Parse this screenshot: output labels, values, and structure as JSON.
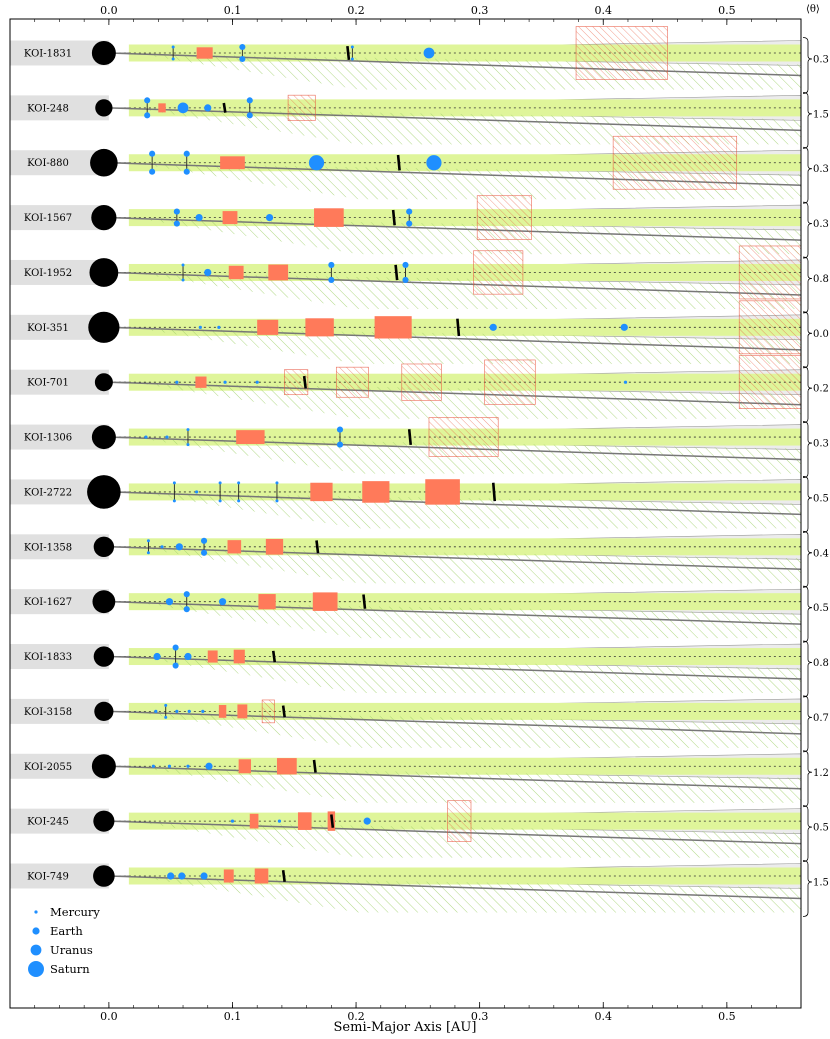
{
  "chart_data": {
    "type": "scatter",
    "title": "",
    "xlabel": "Semi-Major Axis [AU]",
    "xlim": [
      -0.08,
      0.56
    ],
    "xticks": [
      {
        "value": 0.0,
        "label": "0.0"
      },
      {
        "value": 0.1,
        "label": "0.1"
      },
      {
        "value": 0.2,
        "label": "0.2"
      },
      {
        "value": 0.3,
        "label": "0.3"
      },
      {
        "value": 0.4,
        "label": "0.4"
      },
      {
        "value": 0.5,
        "label": "0.5"
      }
    ],
    "theta_header": "⟨θ⟩",
    "legend": {
      "placement": "bottom-left",
      "items": [
        {
          "label": "Mercury",
          "size": "mercury"
        },
        {
          "label": "Earth",
          "size": "earth"
        },
        {
          "label": "Uranus",
          "size": "uranus"
        },
        {
          "label": "Saturn",
          "size": "saturn"
        }
      ]
    },
    "colors": {
      "planet": "#1f8fff",
      "star": "#000000",
      "hz_band": "#dff59a",
      "hz_hatch": "#8fc95a",
      "gap": "#ff7a5a",
      "gap_hatch": "#e8503a",
      "cone": "#e0e0e0"
    },
    "systems": [
      {
        "name": "KOI-1831",
        "theta": "0.3",
        "star_size": 1.0,
        "hz_end": 0.56,
        "planets": [
          {
            "a": 0.052,
            "size": "mercury",
            "err": 1
          },
          {
            "a": 0.108,
            "size": "earth",
            "err": 1
          },
          {
            "a": 0.197,
            "size": "mercury",
            "err": 1
          },
          {
            "a": 0.259,
            "size": "uranus",
            "err": 0
          }
        ],
        "gaps": [
          {
            "a1": 0.071,
            "a2": 0.084
          }
        ],
        "hatched_gaps": [
          {
            "a1": 0.378,
            "a2": 0.452
          }
        ],
        "bar": 0.193
      },
      {
        "name": "KOI-248",
        "theta": "1.5",
        "star_size": 0.72,
        "hz_end": 0.56,
        "planets": [
          {
            "a": 0.031,
            "size": "earth",
            "err": 1
          },
          {
            "a": 0.06,
            "size": "uranus",
            "err": 0
          },
          {
            "a": 0.08,
            "size": "earth",
            "err": 0
          },
          {
            "a": 0.114,
            "size": "earth",
            "err": 1
          }
        ],
        "gaps": [
          {
            "a1": 0.04,
            "a2": 0.046
          }
        ],
        "hatched_gaps": [
          {
            "a1": 0.145,
            "a2": 0.167
          }
        ],
        "bar": 0.093
      },
      {
        "name": "KOI-880",
        "theta": "0.3",
        "star_size": 1.15,
        "hz_end": 0.56,
        "planets": [
          {
            "a": 0.035,
            "size": "earth",
            "err": 1
          },
          {
            "a": 0.063,
            "size": "earth",
            "err": 1
          },
          {
            "a": 0.168,
            "size": "saturn",
            "err": 0
          },
          {
            "a": 0.263,
            "size": "saturn",
            "err": 0
          }
        ],
        "gaps": [
          {
            "a1": 0.09,
            "a2": 0.11
          }
        ],
        "hatched_gaps": [
          {
            "a1": 0.408,
            "a2": 0.508
          }
        ],
        "bar": 0.234
      },
      {
        "name": "KOI-1567",
        "theta": "0.3",
        "star_size": 1.05,
        "hz_end": 0.56,
        "planets": [
          {
            "a": 0.055,
            "size": "earth",
            "err": 1
          },
          {
            "a": 0.073,
            "size": "earth",
            "err": 0
          },
          {
            "a": 0.13,
            "size": "earth",
            "err": 0
          },
          {
            "a": 0.243,
            "size": "earth",
            "err": 1
          }
        ],
        "gaps": [
          {
            "a1": 0.092,
            "a2": 0.104
          },
          {
            "a1": 0.166,
            "a2": 0.19
          }
        ],
        "hatched_gaps": [
          {
            "a1": 0.298,
            "a2": 0.342
          }
        ],
        "bar": 0.23
      },
      {
        "name": "KOI-1952",
        "theta": "0.8",
        "star_size": 1.2,
        "hz_end": 0.56,
        "planets": [
          {
            "a": 0.06,
            "size": "mercury",
            "err": 1
          },
          {
            "a": 0.08,
            "size": "earth",
            "err": 0
          },
          {
            "a": 0.18,
            "size": "earth",
            "err": 1
          },
          {
            "a": 0.24,
            "size": "earth",
            "err": 1
          }
        ],
        "gaps": [
          {
            "a1": 0.097,
            "a2": 0.109
          },
          {
            "a1": 0.129,
            "a2": 0.145
          }
        ],
        "hatched_gaps": [
          {
            "a1": 0.295,
            "a2": 0.335
          },
          {
            "a1": 0.51,
            "a2": 0.56
          }
        ],
        "bar": 0.232
      },
      {
        "name": "KOI-351",
        "theta": "0.0",
        "star_size": 1.3,
        "hz_end": 0.56,
        "planets": [
          {
            "a": 0.074,
            "size": "mercury",
            "err": 0
          },
          {
            "a": 0.089,
            "size": "mercury",
            "err": 0
          },
          {
            "a": 0.311,
            "size": "earth",
            "err": 0
          },
          {
            "a": 0.417,
            "size": "earth",
            "err": 0
          }
        ],
        "gaps": [
          {
            "a1": 0.12,
            "a2": 0.137
          },
          {
            "a1": 0.159,
            "a2": 0.182
          },
          {
            "a1": 0.215,
            "a2": 0.245
          }
        ],
        "hatched_gaps": [
          {
            "a1": 0.51,
            "a2": 0.56
          }
        ],
        "bar": 0.282
      },
      {
        "name": "KOI-701",
        "theta": "0.2",
        "star_size": 0.75,
        "hz_end": 0.56,
        "planets": [
          {
            "a": 0.055,
            "size": "mercury",
            "err": 0
          },
          {
            "a": 0.094,
            "size": "mercury",
            "err": 0
          },
          {
            "a": 0.12,
            "size": "mercury",
            "err": 0
          },
          {
            "a": 0.418,
            "size": "mercury",
            "err": 0
          }
        ],
        "gaps": [
          {
            "a1": 0.07,
            "a2": 0.079
          }
        ],
        "hatched_gaps": [
          {
            "a1": 0.142,
            "a2": 0.161
          },
          {
            "a1": 0.184,
            "a2": 0.21
          },
          {
            "a1": 0.237,
            "a2": 0.269
          },
          {
            "a1": 0.304,
            "a2": 0.345
          },
          {
            "a1": 0.51,
            "a2": 0.56
          }
        ],
        "bar": 0.158
      },
      {
        "name": "KOI-1306",
        "theta": "0.3",
        "star_size": 1.0,
        "hz_end": 0.56,
        "planets": [
          {
            "a": 0.03,
            "size": "mercury",
            "err": 0
          },
          {
            "a": 0.047,
            "size": "mercury",
            "err": 0
          },
          {
            "a": 0.064,
            "size": "mercury",
            "err": 1
          },
          {
            "a": 0.187,
            "size": "earth",
            "err": 1
          }
        ],
        "gaps": [
          {
            "a1": 0.103,
            "a2": 0.126
          }
        ],
        "hatched_gaps": [
          {
            "a1": 0.259,
            "a2": 0.315
          }
        ],
        "bar": 0.243
      },
      {
        "name": "KOI-2722",
        "theta": "0.5",
        "star_size": 1.4,
        "hz_end": 0.56,
        "planets": [
          {
            "a": 0.053,
            "size": "mercury",
            "err": 1
          },
          {
            "a": 0.071,
            "size": "mercury",
            "err": 0
          },
          {
            "a": 0.09,
            "size": "mercury",
            "err": 1
          },
          {
            "a": 0.105,
            "size": "mercury",
            "err": 1
          },
          {
            "a": 0.136,
            "size": "mercury",
            "err": 1
          }
        ],
        "gaps": [
          {
            "a1": 0.163,
            "a2": 0.181
          },
          {
            "a1": 0.205,
            "a2": 0.227
          },
          {
            "a1": 0.256,
            "a2": 0.284
          }
        ],
        "hatched_gaps": [],
        "bar": 0.311
      },
      {
        "name": "KOI-1358",
        "theta": "0.4",
        "star_size": 0.85,
        "hz_end": 0.56,
        "planets": [
          {
            "a": 0.032,
            "size": "mercury",
            "err": 1
          },
          {
            "a": 0.043,
            "size": "mercury",
            "err": 0
          },
          {
            "a": 0.057,
            "size": "earth",
            "err": 0
          },
          {
            "a": 0.077,
            "size": "earth",
            "err": 1
          }
        ],
        "gaps": [
          {
            "a1": 0.096,
            "a2": 0.107
          },
          {
            "a1": 0.127,
            "a2": 0.141
          }
        ],
        "hatched_gaps": [],
        "bar": 0.168
      },
      {
        "name": "KOI-1627",
        "theta": "0.5",
        "star_size": 0.95,
        "hz_end": 0.56,
        "planets": [
          {
            "a": 0.049,
            "size": "earth",
            "err": 0
          },
          {
            "a": 0.063,
            "size": "earth",
            "err": 1
          },
          {
            "a": 0.092,
            "size": "earth",
            "err": 0
          }
        ],
        "gaps": [
          {
            "a1": 0.121,
            "a2": 0.135
          },
          {
            "a1": 0.165,
            "a2": 0.185
          }
        ],
        "hatched_gaps": [],
        "bar": 0.206
      },
      {
        "name": "KOI-1833",
        "theta": "0.8",
        "star_size": 0.85,
        "hz_end": 0.56,
        "planets": [
          {
            "a": 0.039,
            "size": "earth",
            "err": 0
          },
          {
            "a": 0.054,
            "size": "earth",
            "err": 1
          },
          {
            "a": 0.064,
            "size": "earth",
            "err": 0
          }
        ],
        "gaps": [
          {
            "a1": 0.08,
            "a2": 0.088
          },
          {
            "a1": 0.101,
            "a2": 0.11
          }
        ],
        "hatched_gaps": [],
        "bar": 0.133
      },
      {
        "name": "KOI-3158",
        "theta": "0.7",
        "star_size": 0.8,
        "hz_end": 0.56,
        "planets": [
          {
            "a": 0.038,
            "size": "mercury",
            "err": 0
          },
          {
            "a": 0.046,
            "size": "mercury",
            "err": 1
          },
          {
            "a": 0.055,
            "size": "mercury",
            "err": 0
          },
          {
            "a": 0.065,
            "size": "mercury",
            "err": 0
          },
          {
            "a": 0.076,
            "size": "mercury",
            "err": 0
          }
        ],
        "gaps": [
          {
            "a1": 0.089,
            "a2": 0.095
          },
          {
            "a1": 0.104,
            "a2": 0.112
          }
        ],
        "hatched_gaps": [
          {
            "a1": 0.124,
            "a2": 0.134
          }
        ],
        "bar": 0.141
      },
      {
        "name": "KOI-2055",
        "theta": "1.2",
        "star_size": 1.0,
        "hz_end": 0.56,
        "planets": [
          {
            "a": 0.036,
            "size": "mercury",
            "err": 0
          },
          {
            "a": 0.049,
            "size": "mercury",
            "err": 0
          },
          {
            "a": 0.064,
            "size": "mercury",
            "err": 0
          },
          {
            "a": 0.081,
            "size": "earth",
            "err": 0
          }
        ],
        "gaps": [
          {
            "a1": 0.105,
            "a2": 0.115
          },
          {
            "a1": 0.136,
            "a2": 0.152
          }
        ],
        "hatched_gaps": [],
        "bar": 0.166
      },
      {
        "name": "KOI-245",
        "theta": "0.5",
        "star_size": 0.88,
        "hz_end": 0.56,
        "planets": [
          {
            "a": 0.1,
            "size": "mercury",
            "err": 0
          },
          {
            "a": 0.138,
            "size": "mercury",
            "err": 0
          },
          {
            "a": 0.209,
            "size": "earth",
            "err": 0
          }
        ],
        "gaps": [
          {
            "a1": 0.114,
            "a2": 0.121
          },
          {
            "a1": 0.153,
            "a2": 0.164
          },
          {
            "a1": 0.177,
            "a2": 0.183
          }
        ],
        "hatched_gaps": [
          {
            "a1": 0.274,
            "a2": 0.293
          }
        ],
        "bar": 0.18
      },
      {
        "name": "KOI-749",
        "theta": "1.5",
        "star_size": 0.9,
        "hz_end": 0.56,
        "planets": [
          {
            "a": 0.05,
            "size": "earth",
            "err": 0
          },
          {
            "a": 0.059,
            "size": "earth",
            "err": 0
          },
          {
            "a": 0.077,
            "size": "earth",
            "err": 0
          }
        ],
        "gaps": [
          {
            "a1": 0.093,
            "a2": 0.101
          },
          {
            "a1": 0.118,
            "a2": 0.129
          }
        ],
        "hatched_gaps": [],
        "bar": 0.141
      }
    ]
  }
}
